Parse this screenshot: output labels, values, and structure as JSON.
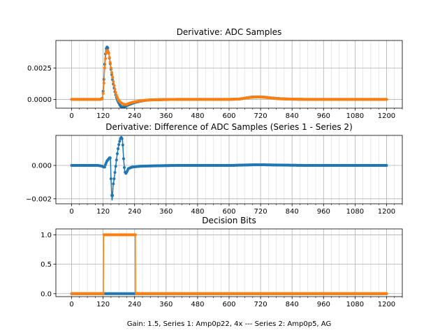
{
  "colors": {
    "series1": "#1f77b4",
    "series2": "#ff7f0e",
    "grid": "#b0b0b0"
  },
  "figure_xlabel": "Gain: 1.5, Series 1: Amp0p22, 4x --- Series 2: Amp0p5, AG",
  "chart_data": [
    {
      "type": "line",
      "title": "Derivative: ADC Samples",
      "xlabel": "",
      "ylabel": "",
      "xlim": [
        -60,
        1260
      ],
      "ylim": [
        -0.0007,
        0.0047
      ],
      "x_ticks": [
        0,
        120,
        240,
        360,
        480,
        600,
        720,
        840,
        960,
        1080,
        1200
      ],
      "y_ticks": [
        0.0,
        0.0025
      ],
      "y_tick_labels": [
        "0.0000",
        "0.0025"
      ],
      "grid": true,
      "minor_x_step": 30,
      "series": [
        {
          "x": [
            0,
            100,
            110,
            118,
            122,
            126,
            130,
            134,
            138,
            142,
            146,
            150,
            155,
            160,
            165,
            170,
            175,
            180,
            185,
            190,
            200,
            210,
            220,
            240,
            260,
            280,
            300,
            330,
            360,
            400,
            450,
            500,
            550,
            600,
            640,
            660,
            680,
            700,
            720,
            740,
            760,
            780,
            800,
            840,
            900,
            1000,
            1100,
            1200
          ],
          "values": [
            0,
            0,
            0,
            0.0001,
            0.0012,
            0.0028,
            0.0039,
            0.0042,
            0.0041,
            0.0036,
            0.003,
            0.0024,
            0.0017,
            0.0011,
            0.0006,
            0.0002,
            -0.0001,
            -0.0003,
            -0.0005,
            -0.0006,
            -0.0006,
            -0.0005,
            -0.0004,
            -0.00025,
            -0.00015,
            -8e-05,
            -4e-05,
            -2e-05,
            -1e-05,
            0,
            0,
            0,
            0,
            0,
            3e-05,
            0.0001,
            0.00017,
            0.0002,
            0.0002,
            0.00017,
            0.00012,
            8e-05,
            5e-05,
            2e-05,
            0,
            0,
            0,
            0
          ]
        },
        {
          "x": [
            0,
            100,
            110,
            118,
            122,
            126,
            130,
            134,
            138,
            142,
            146,
            150,
            155,
            160,
            165,
            170,
            175,
            180,
            185,
            190,
            200,
            210,
            220,
            240,
            260,
            280,
            300,
            330,
            360,
            400,
            450,
            500,
            550,
            600,
            640,
            660,
            680,
            700,
            720,
            740,
            760,
            780,
            800,
            840,
            900,
            1000,
            1100,
            1200
          ],
          "values": [
            0,
            0,
            0,
            5e-05,
            0.0009,
            0.0025,
            0.0035,
            0.0039,
            0.0039,
            0.0036,
            0.0031,
            0.0025,
            0.0019,
            0.0013,
            0.0008,
            0.0004,
            0.0001,
            -0.0001,
            -0.0002,
            -0.0003,
            -0.0004,
            -0.0004,
            -0.0003,
            -0.0002,
            -0.00012,
            -7e-05,
            -4e-05,
            -2e-05,
            -1e-05,
            0,
            0,
            0,
            0,
            0,
            3e-05,
            0.0001,
            0.00016,
            0.00019,
            0.00019,
            0.00016,
            0.00011,
            7e-05,
            4e-05,
            2e-05,
            0,
            0,
            0,
            0
          ]
        }
      ]
    },
    {
      "type": "line",
      "title": "Derivative: Difference of ADC Samples (Series 1 - Series 2)",
      "xlabel": "",
      "ylabel": "",
      "xlim": [
        -60,
        1260
      ],
      "ylim": [
        -0.0023,
        0.0018
      ],
      "x_ticks": [
        0,
        120,
        240,
        360,
        480,
        600,
        720,
        840,
        960,
        1080,
        1200
      ],
      "y_ticks": [
        -0.002,
        0.0
      ],
      "y_tick_labels": [
        "−0.002",
        "0.000"
      ],
      "grid": true,
      "minor_x_step": 30,
      "series": [
        {
          "x": [
            0,
            100,
            118,
            122,
            126,
            130,
            136,
            142,
            146,
            148,
            150,
            152,
            154,
            156,
            158,
            162,
            166,
            170,
            174,
            178,
            182,
            186,
            190,
            194,
            198,
            202,
            206,
            210,
            216,
            222,
            230,
            240,
            260,
            300,
            360,
            400,
            500,
            600,
            650,
            700,
            720,
            760,
            800,
            900,
            1000,
            1100,
            1200
          ],
          "values": [
            0,
            0,
            -5e-05,
            -0.0001,
            -0.0001,
            0.0001,
            0.0003,
            0.0004,
            0.0005,
            0.0004,
            -0.0008,
            -0.0015,
            -0.0021,
            -0.0018,
            -0.0012,
            -0.0008,
            -0.0003,
            0.0002,
            0.0007,
            0.0011,
            0.0014,
            0.0016,
            0.0017,
            0.0015,
            0.0004,
            -0.0003,
            -0.0005,
            -0.0004,
            -0.0002,
            -0.00015,
            -0.0001,
            -8e-05,
            -5e-05,
            -3e-05,
            -1e-05,
            0,
            0,
            0,
            2e-05,
            4e-05,
            4e-05,
            3e-05,
            2e-05,
            0,
            0,
            0,
            0
          ]
        }
      ]
    },
    {
      "type": "line",
      "title": "Decision Bits",
      "xlabel": "Gain: 1.5, Series 1: Amp0p22, 4x --- Series 2: Amp0p5, AG",
      "ylabel": "",
      "xlim": [
        -60,
        1260
      ],
      "ylim": [
        -0.05,
        1.1
      ],
      "x_ticks": [
        0,
        120,
        240,
        360,
        480,
        600,
        720,
        840,
        960,
        1080,
        1200
      ],
      "y_ticks": [
        0.0,
        0.5,
        1.0
      ],
      "y_tick_labels": [
        "0.0",
        "0.5",
        "1.0"
      ],
      "grid": true,
      "minor_x_step": 30,
      "series": [
        {
          "x": [
            0,
            1200
          ],
          "values": [
            0,
            0
          ]
        },
        {
          "x": [
            0,
            121,
            122,
            243,
            244,
            1200
          ],
          "values": [
            0,
            0,
            1,
            1,
            0,
            0
          ]
        }
      ]
    }
  ]
}
